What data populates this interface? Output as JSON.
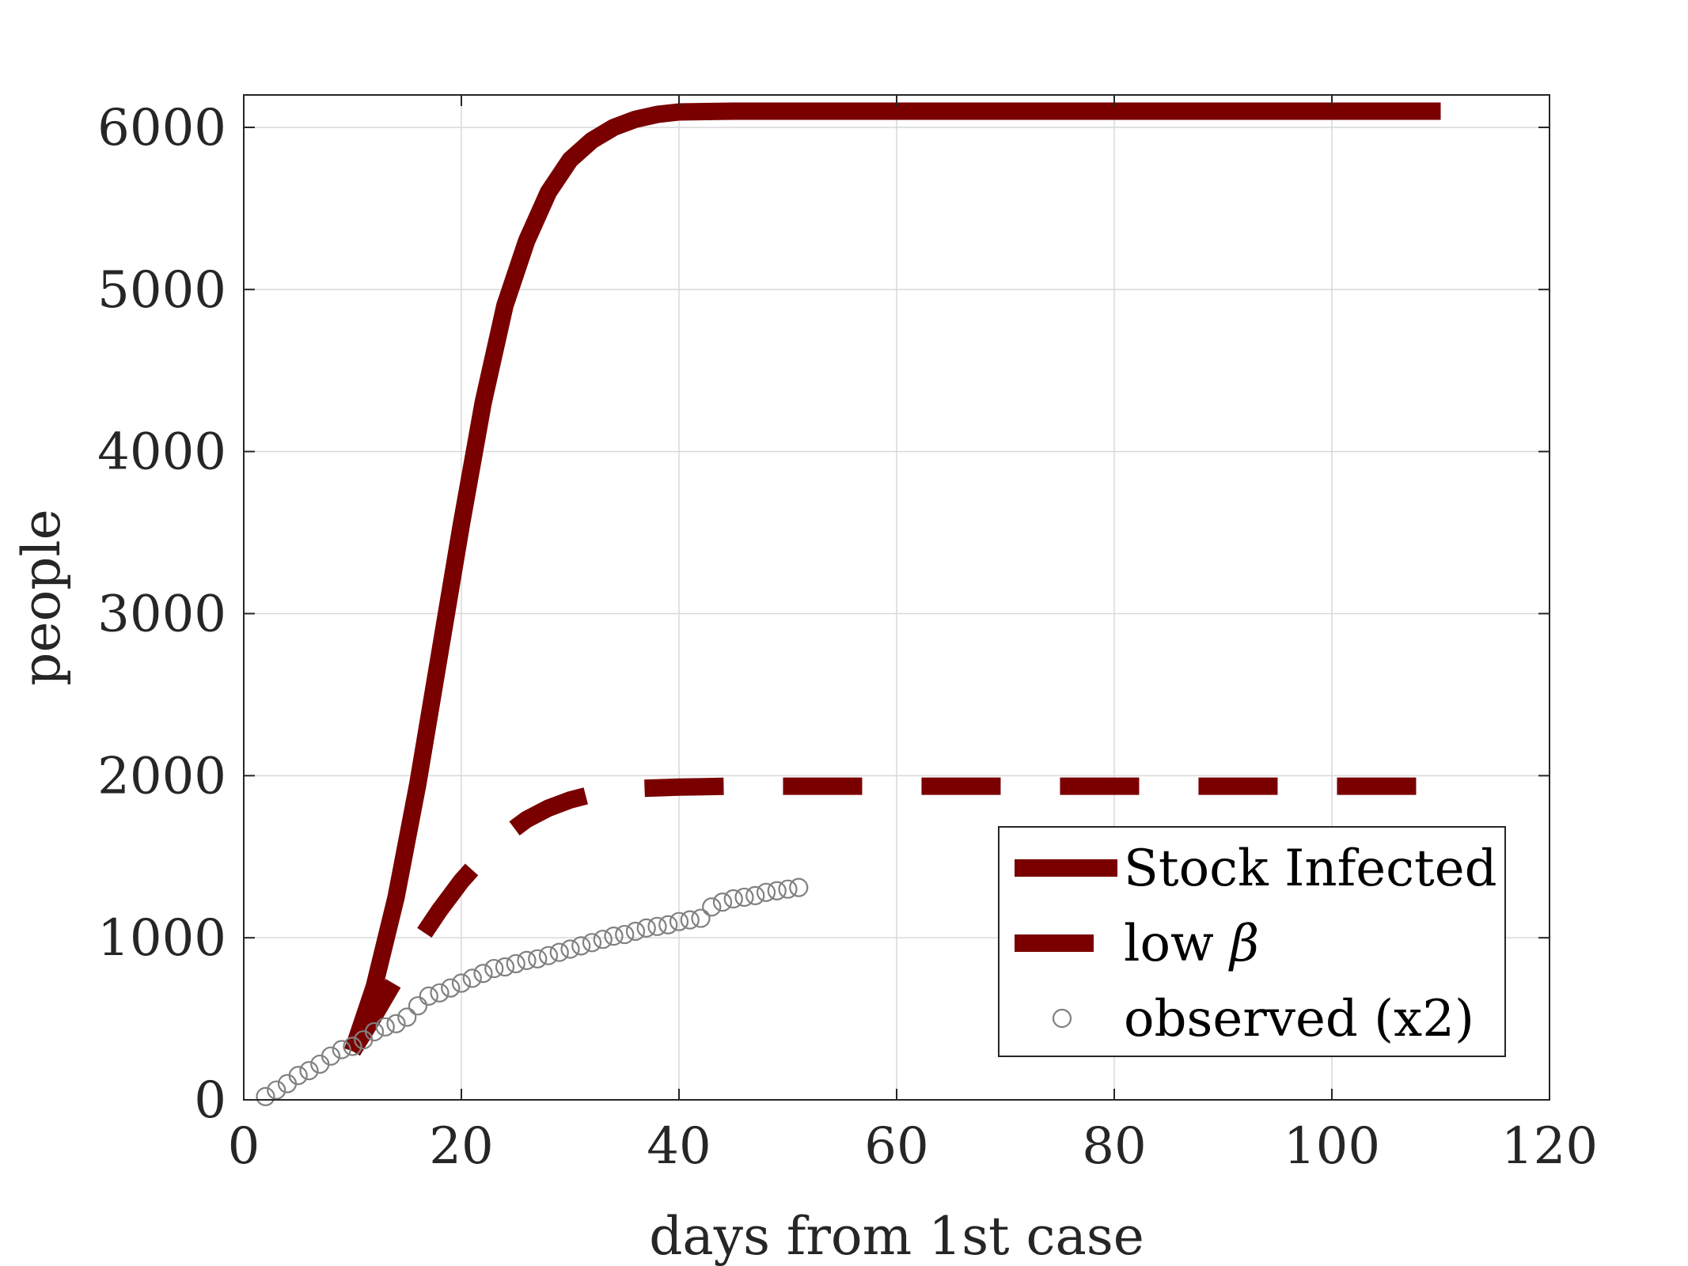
{
  "chart_data": {
    "type": "line",
    "title": "",
    "xlabel": "days from 1st case",
    "ylabel": "people",
    "xlim": [
      0,
      120
    ],
    "ylim": [
      0,
      6200
    ],
    "xticks": [
      0,
      20,
      40,
      60,
      80,
      100,
      120
    ],
    "yticks": [
      0,
      1000,
      2000,
      3000,
      4000,
      5000,
      6000
    ],
    "grid": true,
    "legend_position": "bottom-right",
    "colors": {
      "model": "#7a0000",
      "observed": "#808080"
    },
    "series": [
      {
        "name": "Stock Infected",
        "style": "solid",
        "x": [
          10,
          12,
          14,
          16,
          18,
          20,
          22,
          24,
          26,
          28,
          30,
          32,
          34,
          36,
          38,
          40,
          45,
          50,
          60,
          80,
          100,
          110
        ],
        "y": [
          300,
          700,
          1250,
          1950,
          2750,
          3550,
          4300,
          4900,
          5300,
          5600,
          5800,
          5920,
          6000,
          6050,
          6080,
          6095,
          6100,
          6100,
          6100,
          6100,
          6100,
          6100
        ]
      },
      {
        "name": "low β",
        "legend_text": "low",
        "legend_symbol": "β",
        "style": "dashed",
        "x": [
          10,
          12,
          14,
          16,
          18,
          20,
          22,
          24,
          26,
          28,
          30,
          32,
          34,
          36,
          40,
          45,
          50,
          60,
          80,
          100,
          110
        ],
        "y": [
          300,
          520,
          750,
          970,
          1170,
          1350,
          1500,
          1630,
          1730,
          1800,
          1850,
          1885,
          1905,
          1920,
          1930,
          1935,
          1935,
          1935,
          1935,
          1935,
          1935
        ]
      },
      {
        "name": "observed (x2)",
        "style": "markers",
        "x": [
          2,
          3,
          4,
          5,
          6,
          7,
          8,
          9,
          10,
          11,
          12,
          13,
          14,
          15,
          16,
          17,
          18,
          19,
          20,
          21,
          22,
          23,
          24,
          25,
          26,
          27,
          28,
          29,
          30,
          31,
          32,
          33,
          34,
          35,
          36,
          37,
          38,
          39,
          40,
          41,
          42,
          43,
          44,
          45,
          46,
          47,
          48,
          49,
          50,
          51
        ],
        "y": [
          20,
          60,
          100,
          150,
          180,
          220,
          270,
          310,
          330,
          370,
          420,
          450,
          470,
          510,
          580,
          640,
          660,
          690,
          720,
          750,
          780,
          810,
          820,
          840,
          860,
          870,
          890,
          910,
          930,
          950,
          970,
          990,
          1010,
          1020,
          1040,
          1060,
          1070,
          1080,
          1100,
          1110,
          1120,
          1190,
          1220,
          1240,
          1250,
          1260,
          1280,
          1290,
          1300,
          1310
        ]
      }
    ]
  }
}
